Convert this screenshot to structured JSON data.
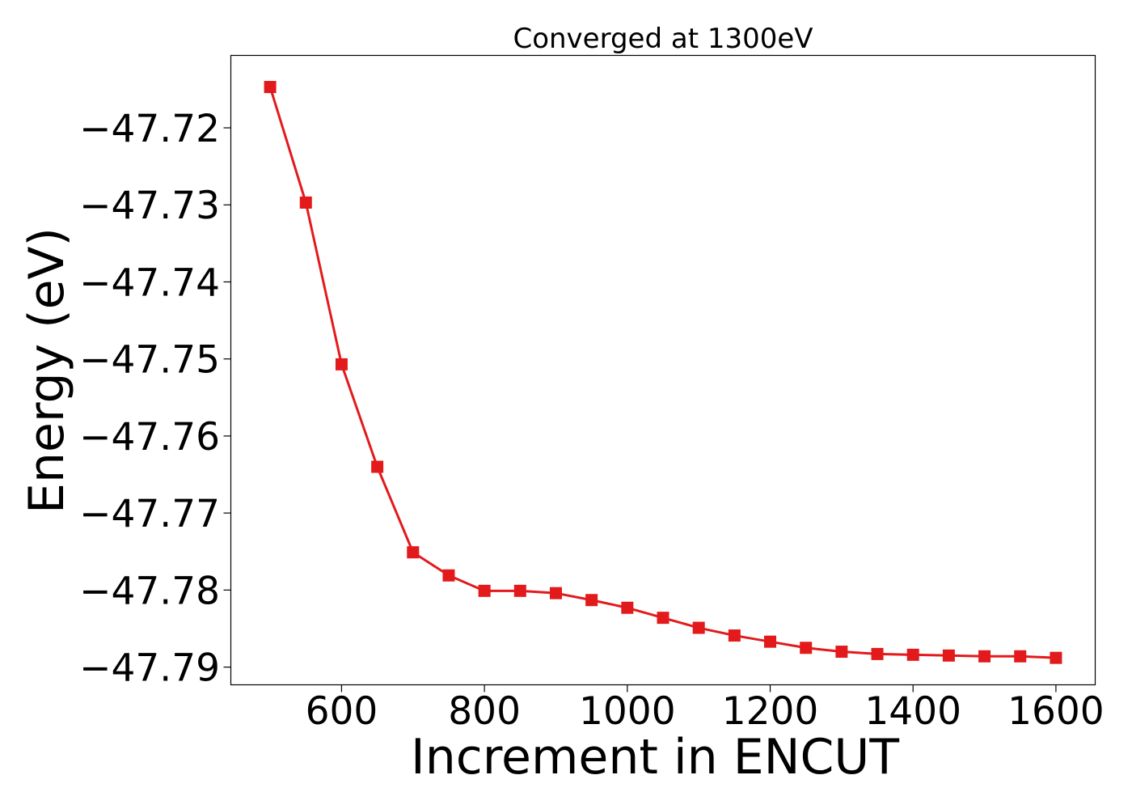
{
  "chart_data": {
    "type": "line",
    "title": "Converged at 1300eV",
    "xlabel": "Increment in ENCUT",
    "ylabel": "Energy (eV)",
    "xlim": [
      445,
      1655
    ],
    "ylim": [
      -47.7923,
      -47.7106
    ],
    "x_ticks": [
      600,
      800,
      1000,
      1200,
      1400,
      1600
    ],
    "x_tick_labels": [
      "600",
      "800",
      "1000",
      "1200",
      "1400",
      "1600"
    ],
    "y_ticks": [
      -47.72,
      -47.73,
      -47.74,
      -47.75,
      -47.76,
      -47.77,
      -47.78,
      -47.79
    ],
    "y_tick_labels": [
      "−47.72",
      "−47.73",
      "−47.74",
      "−47.75",
      "−47.76",
      "−47.77",
      "−47.78",
      "−47.79"
    ],
    "grid": false,
    "line_color": "#e31a1c",
    "marker": "square",
    "series": [
      {
        "x": [
          500,
          550,
          600,
          650,
          700,
          750,
          800,
          850,
          900,
          950,
          1000,
          1050,
          1100,
          1150,
          1200,
          1250,
          1300,
          1350,
          1400,
          1450,
          1500,
          1550,
          1600
        ],
        "values": [
          -47.7147,
          -47.7297,
          -47.7507,
          -47.764,
          -47.7751,
          -47.7781,
          -47.7801,
          -47.7801,
          -47.7804,
          -47.7813,
          -47.7823,
          -47.7836,
          -47.7849,
          -47.7859,
          -47.7867,
          -47.7875,
          -47.788,
          -47.7883,
          -47.7884,
          -47.7885,
          -47.7886,
          -47.7886,
          -47.7888
        ]
      }
    ]
  }
}
